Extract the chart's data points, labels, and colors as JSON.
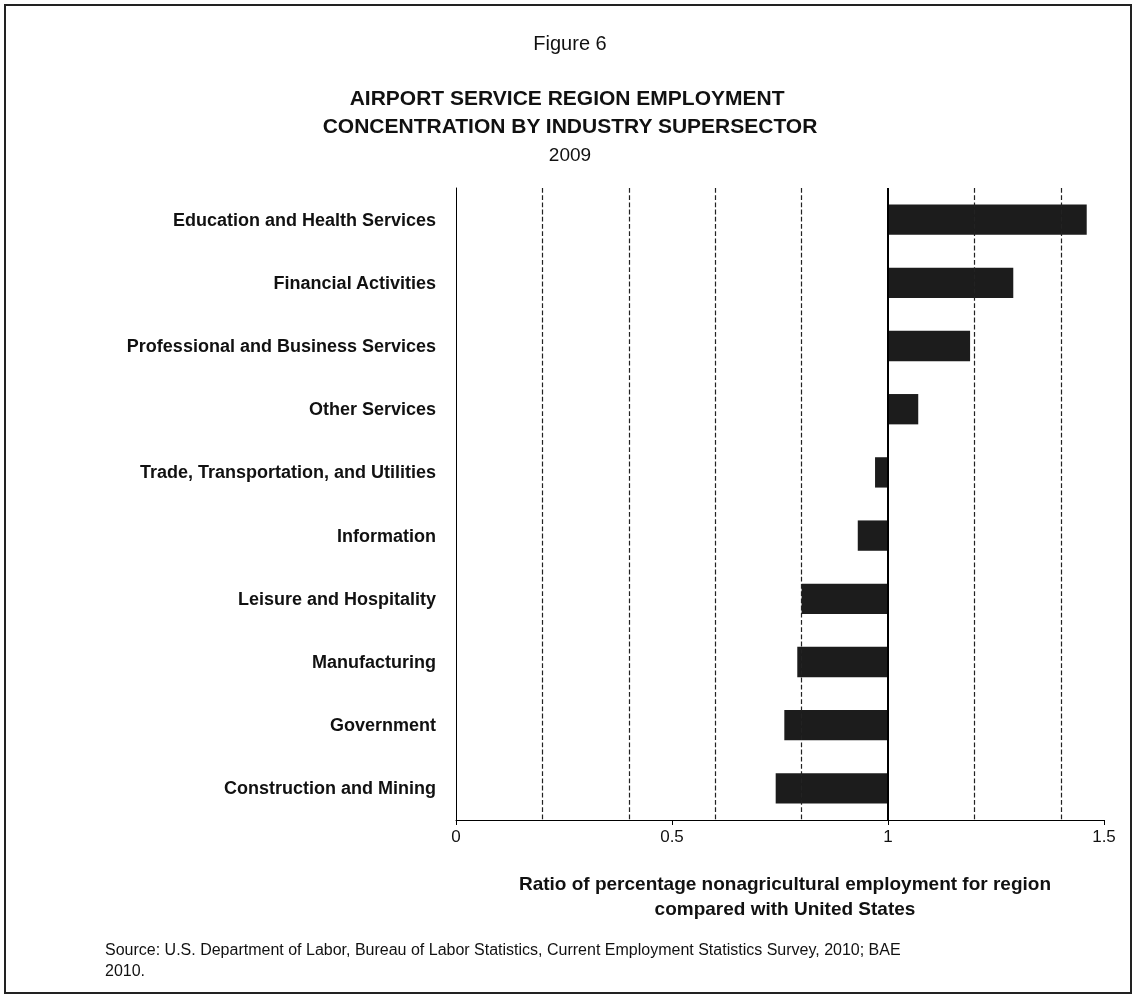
{
  "chart_data": {
    "type": "bar",
    "orientation": "horizontal",
    "title": "AIRPORT SERVICE REGION EMPLOYMENT CONCENTRATION BY INDUSTRY SUPERSECTOR",
    "subtitle": "2009",
    "categories": [
      "Education and Health Services",
      "Financial Activities",
      "Professional and Business Services",
      "Other Services",
      "Trade, Transportation, and Utilities",
      "Information",
      "Leisure and Hospitality",
      "Manufacturing",
      "Government",
      "Construction and Mining"
    ],
    "base": [
      1,
      1,
      1,
      1,
      1,
      1,
      1,
      1,
      1,
      1
    ],
    "values": [
      0.46,
      0.29,
      0.19,
      0.07,
      -0.03,
      -0.07,
      -0.2,
      -0.21,
      -0.24,
      -0.26
    ],
    "color": "#1c1c1c",
    "xlim": [
      0,
      1.5
    ],
    "xticks": [
      0,
      {
        "value": 0.2,
        "label": null
      },
      {
        "value": 0.4,
        "label": null
      },
      0.5,
      {
        "value": 0.6,
        "label": null
      },
      {
        "value": 0.8,
        "label": null
      },
      1,
      {
        "value": 1.2,
        "label": null
      },
      {
        "value": 1.4,
        "label": null
      },
      1.5
    ],
    "grid": "x",
    "ref_lines": [
      {
        "axis": "x",
        "value": 1,
        "label": null,
        "color": "#000000",
        "line_style": "solid"
      }
    ],
    "xlabel": "Ratio of percentage nonagricultural employment for region compared with United States",
    "annotations": [
      "Figure 6",
      "Source:   U.S. Department of Labor, Bureau of Labor Statistics, Current Employment Statistics Survey, 2010; BAE 2010."
    ]
  }
}
